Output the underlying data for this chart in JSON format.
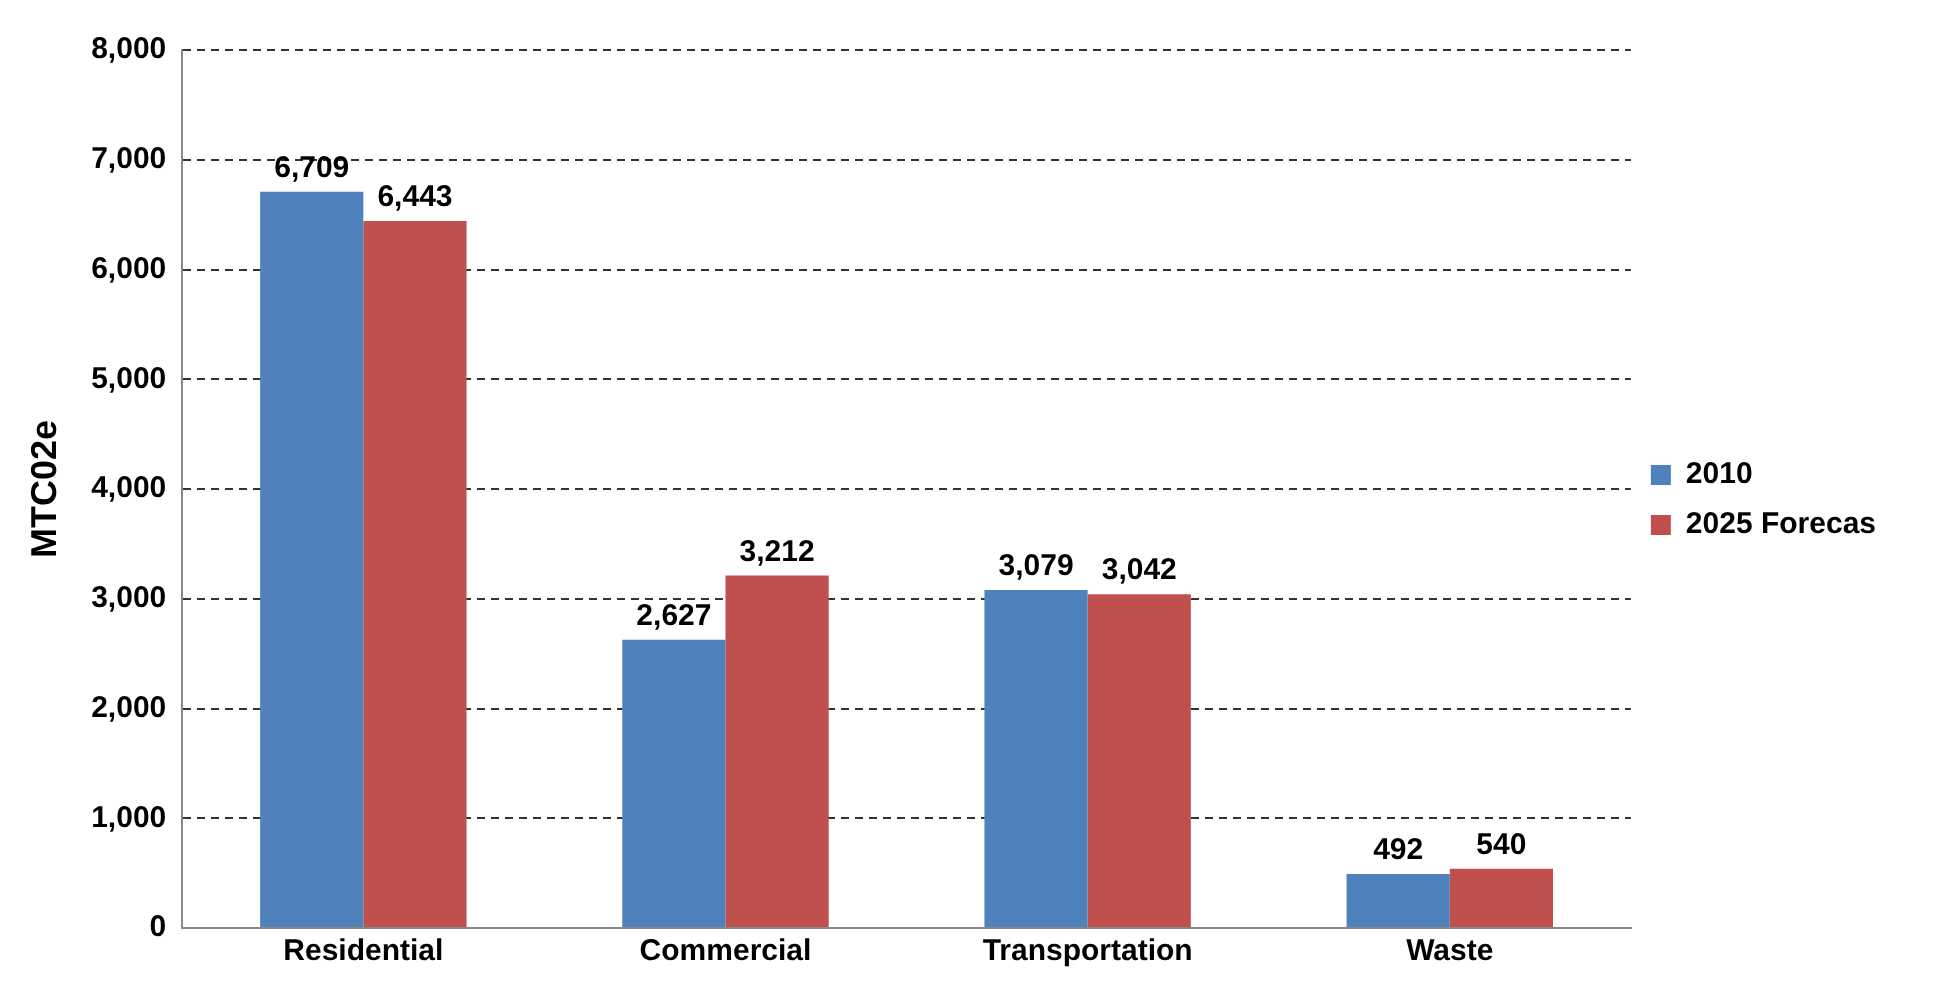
{
  "chart_data": {
    "type": "bar",
    "ylabel": "MTC02e",
    "categories": [
      "Residential",
      "Commercial",
      "Transportation",
      "Waste"
    ],
    "series": [
      {
        "name": "2010",
        "color": "#4f81bd",
        "values": [
          6709,
          2627,
          3079,
          492
        ],
        "value_labels": [
          "6,709",
          "2,627",
          "3,079",
          "492"
        ]
      },
      {
        "name": "2025 Forecas",
        "color": "#c0504d",
        "values": [
          6443,
          3212,
          3042,
          540
        ],
        "value_labels": [
          "6,443",
          "3,212",
          "3,042",
          "540"
        ]
      }
    ],
    "ylim": [
      0,
      8000
    ],
    "yticks": [
      {
        "value": 0,
        "label": "0"
      },
      {
        "value": 1000,
        "label": "1,000"
      },
      {
        "value": 2000,
        "label": "2,000"
      },
      {
        "value": 3000,
        "label": "3,000"
      },
      {
        "value": 4000,
        "label": "4,000"
      },
      {
        "value": 5000,
        "label": "5,000"
      },
      {
        "value": 6000,
        "label": "6,000"
      },
      {
        "value": 7000,
        "label": "7,000"
      },
      {
        "value": 8000,
        "label": "8,000"
      }
    ],
    "grid": "y",
    "legend": "right"
  }
}
